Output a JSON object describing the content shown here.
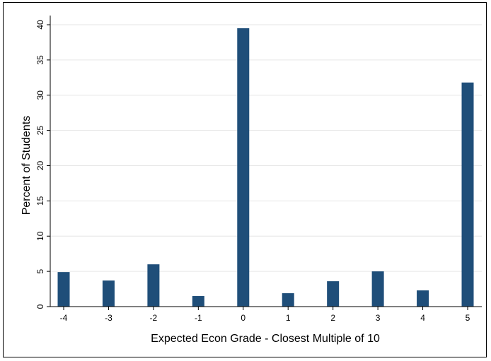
{
  "chart_data": {
    "type": "bar",
    "title": "",
    "xlabel": "Expected Econ Grade - Closest Multiple of 10",
    "ylabel": "Percent of Students",
    "categories": [
      "-4",
      "-3",
      "-2",
      "-1",
      "0",
      "1",
      "2",
      "3",
      "4",
      "5"
    ],
    "values": [
      4.9,
      3.7,
      6.0,
      1.5,
      39.5,
      1.9,
      3.6,
      5.0,
      2.3,
      31.8
    ],
    "xlim": [
      -4,
      5
    ],
    "ylim": [
      0,
      40
    ],
    "yticks": [
      "0",
      "5",
      "10",
      "15",
      "20",
      "25",
      "30",
      "35",
      "40"
    ],
    "grid": "horizontal",
    "legend": "none",
    "bar_color": "#1f4e79"
  }
}
